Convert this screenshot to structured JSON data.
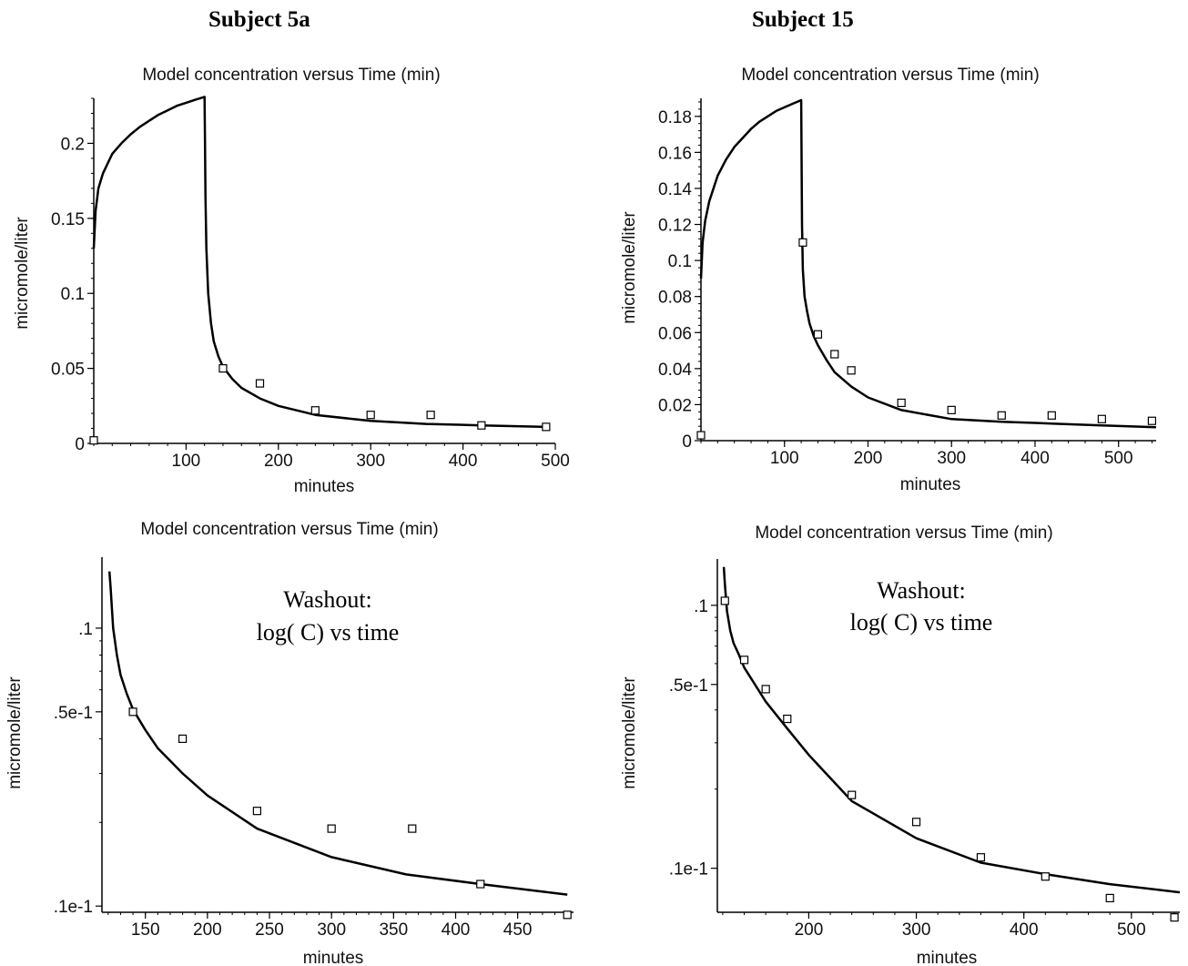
{
  "headings": {
    "left": "Subject 5a",
    "right": "Subject 15"
  },
  "chart_data": [
    {
      "type": "line",
      "title": "Model concentration versus Time (min)",
      "xlabel": "minutes",
      "ylabel": "micromole/liter",
      "xlim": [
        0,
        500
      ],
      "ylim": [
        0,
        0.23
      ],
      "xticks": [
        100,
        200,
        300,
        400,
        500
      ],
      "xtick_labels": [
        "100",
        "200",
        "300",
        "400",
        "500"
      ],
      "yticks": [
        0,
        0.05,
        0.1,
        0.15,
        0.2
      ],
      "ytick_labels": [
        "0",
        "0.05",
        "0.1",
        "0.15",
        "0.2"
      ],
      "series": [
        {
          "kind": "line",
          "x": [
            0,
            2,
            5,
            10,
            20,
            30,
            40,
            50,
            60,
            70,
            80,
            90,
            100,
            110,
            120,
            120.5,
            121,
            122,
            124,
            127,
            130,
            135,
            140,
            150,
            160,
            180,
            200,
            240,
            300,
            360,
            420,
            490
          ],
          "y": [
            0.13,
            0.155,
            0.17,
            0.18,
            0.193,
            0.2,
            0.206,
            0.211,
            0.215,
            0.219,
            0.222,
            0.225,
            0.227,
            0.229,
            0.231,
            0.2,
            0.165,
            0.13,
            0.1,
            0.08,
            0.068,
            0.058,
            0.051,
            0.043,
            0.037,
            0.03,
            0.025,
            0.019,
            0.015,
            0.013,
            0.012,
            0.011
          ]
        },
        {
          "kind": "scatter",
          "x": [
            0,
            140,
            180,
            240,
            300,
            365,
            420,
            490
          ],
          "y": [
            0.002,
            0.05,
            0.04,
            0.022,
            0.019,
            0.019,
            0.012,
            0.011
          ]
        }
      ]
    },
    {
      "type": "line",
      "title": "Model concentration versus Time (min)",
      "xlabel": "minutes",
      "ylabel": "micromole/liter",
      "xlim": [
        0,
        545
      ],
      "ylim": [
        0,
        0.19
      ],
      "xticks": [
        100,
        200,
        300,
        400,
        500
      ],
      "xtick_labels": [
        "100",
        "200",
        "300",
        "400",
        "500"
      ],
      "yticks": [
        0,
        0.02,
        0.04,
        0.06,
        0.08,
        0.1,
        0.12,
        0.14,
        0.16,
        0.18
      ],
      "ytick_labels": [
        "0",
        "0.02",
        "0.04",
        "0.06",
        "0.08",
        "0.1",
        "0.12",
        "0.14",
        "0.16",
        "0.18"
      ],
      "series": [
        {
          "kind": "line",
          "x": [
            0,
            2,
            5,
            10,
            20,
            30,
            40,
            50,
            60,
            70,
            80,
            90,
            100,
            110,
            120,
            120.5,
            121,
            122,
            124,
            127,
            130,
            135,
            140,
            150,
            160,
            180,
            200,
            240,
            300,
            360,
            420,
            480,
            545
          ],
          "y": [
            0.09,
            0.11,
            0.122,
            0.133,
            0.147,
            0.156,
            0.163,
            0.168,
            0.173,
            0.177,
            0.18,
            0.183,
            0.185,
            0.187,
            0.189,
            0.15,
            0.12,
            0.095,
            0.08,
            0.072,
            0.065,
            0.058,
            0.053,
            0.045,
            0.038,
            0.03,
            0.024,
            0.017,
            0.012,
            0.0105,
            0.0095,
            0.0085,
            0.0075
          ]
        },
        {
          "kind": "scatter",
          "x": [
            0,
            122,
            140,
            160,
            180,
            240,
            300,
            360,
            420,
            480,
            540
          ],
          "y": [
            0.003,
            0.11,
            0.059,
            0.048,
            0.039,
            0.021,
            0.017,
            0.014,
            0.014,
            0.012,
            0.011
          ]
        }
      ]
    },
    {
      "type": "line",
      "title": "Model concentration versus Time (min)",
      "xlabel": "minutes",
      "ylabel": "micromole/liter",
      "annotation": [
        "Washout:",
        "log( C) vs time"
      ],
      "yscale": "log",
      "xlim": [
        115,
        495
      ],
      "ylim": [
        0.0095,
        0.18
      ],
      "xticks": [
        150,
        200,
        250,
        300,
        350,
        400,
        450
      ],
      "xtick_labels": [
        "150",
        "200",
        "250",
        "300",
        "350",
        "400",
        "450"
      ],
      "yticks": [
        0.01,
        0.05,
        0.1
      ],
      "ytick_labels": [
        ".1e-1",
        ".5e-1",
        ".1"
      ],
      "series": [
        {
          "kind": "line",
          "x": [
            121,
            122,
            124,
            127,
            130,
            135,
            140,
            150,
            160,
            180,
            200,
            240,
            300,
            360,
            420,
            490
          ],
          "y": [
            0.16,
            0.14,
            0.1,
            0.08,
            0.068,
            0.058,
            0.051,
            0.043,
            0.037,
            0.03,
            0.025,
            0.019,
            0.015,
            0.013,
            0.012,
            0.011
          ]
        },
        {
          "kind": "scatter",
          "x": [
            140,
            180,
            240,
            300,
            365,
            420,
            490
          ],
          "y": [
            0.05,
            0.04,
            0.022,
            0.019,
            0.019,
            0.012,
            0.0093
          ]
        }
      ]
    },
    {
      "type": "line",
      "title": "Model concentration versus Time (min)",
      "xlabel": "minutes",
      "ylabel": "micromole/liter",
      "annotation": [
        "Washout:",
        "log( C) vs time"
      ],
      "yscale": "log",
      "xlim": [
        115,
        545
      ],
      "ylim": [
        0.0068,
        0.15
      ],
      "xticks": [
        200,
        300,
        400,
        500
      ],
      "xtick_labels": [
        "200",
        "300",
        "400",
        "500"
      ],
      "yticks": [
        0.01,
        0.05,
        0.1
      ],
      "ytick_labels": [
        ".1e-1",
        ".5e-1",
        ".1"
      ],
      "series": [
        {
          "kind": "line",
          "x": [
            121,
            122,
            124,
            127,
            130,
            135,
            140,
            150,
            160,
            180,
            200,
            240,
            300,
            360,
            420,
            480,
            545
          ],
          "y": [
            0.14,
            0.12,
            0.095,
            0.08,
            0.072,
            0.065,
            0.058,
            0.05,
            0.043,
            0.034,
            0.027,
            0.018,
            0.013,
            0.0105,
            0.0095,
            0.0087,
            0.0081
          ]
        },
        {
          "kind": "scatter",
          "x": [
            122,
            140,
            160,
            180,
            240,
            300,
            360,
            420,
            480,
            540
          ],
          "y": [
            0.104,
            0.062,
            0.048,
            0.037,
            0.019,
            0.015,
            0.011,
            0.0093,
            0.0077,
            0.0065
          ]
        }
      ]
    }
  ]
}
